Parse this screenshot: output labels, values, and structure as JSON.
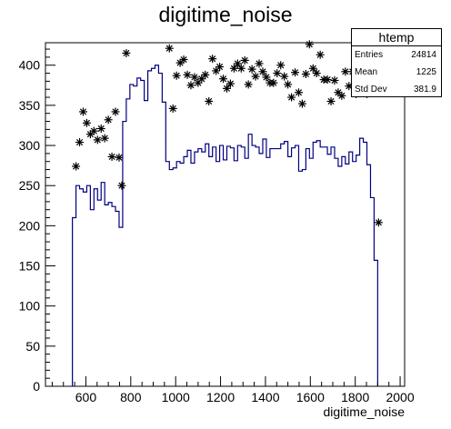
{
  "chart_data": {
    "type": "histogram",
    "title": "digitime_noise",
    "xlabel": "digitime_noise",
    "ylabel": "",
    "xlim": [
      420,
      2020
    ],
    "ylim": [
      0,
      428
    ],
    "xticks": [
      600,
      800,
      1000,
      1200,
      1400,
      1600,
      1800,
      2000
    ],
    "yticks": [
      0,
      50,
      100,
      150,
      200,
      250,
      300,
      350,
      400
    ],
    "line_color": "#000080",
    "marker_color": "#000000",
    "series": [
      {
        "name": "histogram",
        "style": "step",
        "bin_width": 16,
        "points": [
          [
            548,
            210
          ],
          [
            564,
            250
          ],
          [
            580,
            246
          ],
          [
            596,
            242
          ],
          [
            612,
            250
          ],
          [
            628,
            220
          ],
          [
            644,
            246
          ],
          [
            660,
            232
          ],
          [
            676,
            254
          ],
          [
            692,
            226
          ],
          [
            708,
            229
          ],
          [
            724,
            224
          ],
          [
            740,
            218
          ],
          [
            756,
            198
          ],
          [
            772,
            330
          ],
          [
            788,
            358
          ],
          [
            804,
            376
          ],
          [
            820,
            374
          ],
          [
            836,
            384
          ],
          [
            852,
            381
          ],
          [
            868,
            356
          ],
          [
            884,
            393
          ],
          [
            900,
            396
          ],
          [
            916,
            400
          ],
          [
            932,
            390
          ],
          [
            948,
            354
          ],
          [
            964,
            280
          ],
          [
            980,
            270
          ],
          [
            996,
            272
          ],
          [
            1012,
            280
          ],
          [
            1028,
            278
          ],
          [
            1044,
            286
          ],
          [
            1060,
            294
          ],
          [
            1076,
            278
          ],
          [
            1092,
            292
          ],
          [
            1108,
            296
          ],
          [
            1124,
            292
          ],
          [
            1140,
            302
          ],
          [
            1156,
            286
          ],
          [
            1172,
            298
          ],
          [
            1188,
            280
          ],
          [
            1204,
            300
          ],
          [
            1220,
            282
          ],
          [
            1236,
            299
          ],
          [
            1252,
            297
          ],
          [
            1268,
            281
          ],
          [
            1284,
            300
          ],
          [
            1300,
            298
          ],
          [
            1316,
            284
          ],
          [
            1332,
            314
          ],
          [
            1348,
            300
          ],
          [
            1364,
            298
          ],
          [
            1380,
            290
          ],
          [
            1396,
            308
          ],
          [
            1412,
            285
          ],
          [
            1428,
            296
          ],
          [
            1444,
            296
          ],
          [
            1460,
            296
          ],
          [
            1476,
            302
          ],
          [
            1492,
            305
          ],
          [
            1508,
            286
          ],
          [
            1524,
            297
          ],
          [
            1540,
            300
          ],
          [
            1556,
            268
          ],
          [
            1572,
            270
          ],
          [
            1588,
            296
          ],
          [
            1604,
            284
          ],
          [
            1620,
            304
          ],
          [
            1636,
            306
          ],
          [
            1652,
            298
          ],
          [
            1668,
            298
          ],
          [
            1684,
            289
          ],
          [
            1700,
            298
          ],
          [
            1716,
            284
          ],
          [
            1732,
            274
          ],
          [
            1748,
            286
          ],
          [
            1764,
            277
          ],
          [
            1780,
            292
          ],
          [
            1796,
            280
          ],
          [
            1812,
            288
          ],
          [
            1828,
            309
          ],
          [
            1844,
            304
          ],
          [
            1860,
            276
          ],
          [
            1876,
            235
          ],
          [
            1892,
            157
          ]
        ]
      },
      {
        "name": "markers",
        "style": "star",
        "points": [
          [
            556,
            274
          ],
          [
            572,
            304
          ],
          [
            588,
            342
          ],
          [
            604,
            328
          ],
          [
            620,
            314
          ],
          [
            636,
            318
          ],
          [
            652,
            307
          ],
          [
            668,
            321
          ],
          [
            684,
            309
          ],
          [
            700,
            332
          ],
          [
            716,
            286
          ],
          [
            732,
            342
          ],
          [
            748,
            285
          ],
          [
            760,
            250
          ],
          [
            780,
            415
          ],
          [
            972,
            421
          ],
          [
            988,
            346
          ],
          [
            1004,
            387
          ],
          [
            1020,
            403
          ],
          [
            1036,
            407
          ],
          [
            1052,
            388
          ],
          [
            1068,
            375
          ],
          [
            1084,
            385
          ],
          [
            1100,
            378
          ],
          [
            1116,
            383
          ],
          [
            1132,
            388
          ],
          [
            1148,
            355
          ],
          [
            1164,
            408
          ],
          [
            1180,
            393
          ],
          [
            1196,
            398
          ],
          [
            1212,
            383
          ],
          [
            1228,
            371
          ],
          [
            1244,
            377
          ],
          [
            1260,
            396
          ],
          [
            1276,
            402
          ],
          [
            1292,
            396
          ],
          [
            1308,
            406
          ],
          [
            1324,
            376
          ],
          [
            1340,
            395
          ],
          [
            1356,
            386
          ],
          [
            1372,
            402
          ],
          [
            1388,
            392
          ],
          [
            1404,
            385
          ],
          [
            1420,
            378
          ],
          [
            1436,
            378
          ],
          [
            1452,
            390
          ],
          [
            1468,
            400
          ],
          [
            1484,
            386
          ],
          [
            1500,
            376
          ],
          [
            1516,
            360
          ],
          [
            1532,
            391
          ],
          [
            1548,
            366
          ],
          [
            1564,
            352
          ],
          [
            1580,
            389
          ],
          [
            1596,
            426
          ],
          [
            1612,
            396
          ],
          [
            1628,
            390
          ],
          [
            1644,
            413
          ],
          [
            1660,
            382
          ],
          [
            1676,
            382
          ],
          [
            1692,
            355
          ],
          [
            1708,
            381
          ],
          [
            1724,
            366
          ],
          [
            1740,
            362
          ],
          [
            1756,
            392
          ],
          [
            1772,
            374
          ],
          [
            1788,
            392
          ],
          [
            1804,
            364
          ],
          [
            1820,
            393
          ],
          [
            1836,
            373
          ],
          [
            1852,
            364
          ],
          [
            1868,
            371
          ],
          [
            1884,
            388
          ],
          [
            1904,
            204
          ]
        ]
      }
    ],
    "stats_box": {
      "title": "htemp",
      "entries_label": "Entries",
      "entries_value": "24814",
      "mean_label": "Mean",
      "mean_value": "1225",
      "stddev_label": "Std Dev",
      "stddev_value": "381.9"
    }
  }
}
